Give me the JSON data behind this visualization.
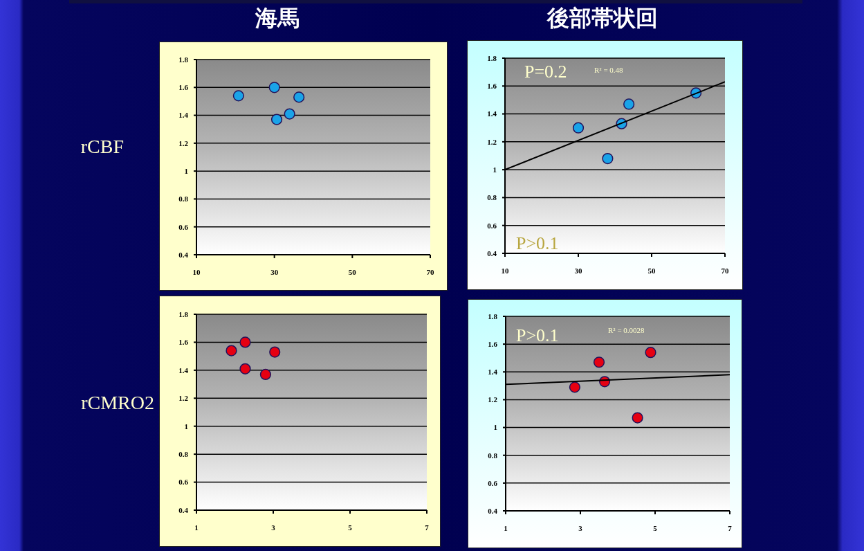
{
  "chart_data": [
    {
      "type": "scatter",
      "title": "海馬",
      "ylabel": "rCBF",
      "xlim": [
        10,
        70
      ],
      "xticks": [
        10,
        30,
        50,
        70
      ],
      "ylim": [
        0.4,
        1.8
      ],
      "yticks": [
        0.4,
        0.6,
        0.8,
        1,
        1.2,
        1.4,
        1.6,
        1.8
      ],
      "grid": "y",
      "marker": "circle",
      "series": [
        {
          "color": "#1aa3e8",
          "x": [
            20.8,
            30,
            36.3,
            33.9,
            30.6
          ],
          "values": [
            1.54,
            1.6,
            1.53,
            1.41,
            1.37
          ]
        }
      ]
    },
    {
      "type": "scatter",
      "title": "後部帯状回",
      "xlim": [
        10,
        70
      ],
      "xticks": [
        10,
        30,
        50,
        70
      ],
      "ylim": [
        0.4,
        1.8
      ],
      "yticks": [
        0.4,
        0.6,
        0.8,
        1,
        1.2,
        1.4,
        1.6,
        1.8
      ],
      "grid": "y",
      "marker": "circle",
      "annotations": [
        "P=0.2",
        "R² = 0.48",
        "P>0.1"
      ],
      "series": [
        {
          "color": "#1aa3e8",
          "x": [
            30,
            38,
            41.8,
            43.8,
            62.1
          ],
          "values": [
            1.3,
            1.08,
            1.33,
            1.47,
            1.55
          ]
        },
        {
          "type": "line",
          "color": "#000000",
          "marker": "none",
          "x": [
            10,
            70
          ],
          "values": [
            1.0,
            1.63
          ]
        }
      ]
    },
    {
      "type": "scatter",
      "ylabel": "rCMRO2",
      "xlim": [
        1,
        7
      ],
      "xticks": [
        1,
        3,
        5,
        7
      ],
      "ylim": [
        0.4,
        1.8
      ],
      "yticks": [
        0.4,
        0.6,
        0.8,
        1,
        1.2,
        1.4,
        1.6,
        1.8
      ],
      "grid": "y",
      "marker": "circle",
      "series": [
        {
          "color": "#e60012",
          "x": [
            1.91,
            2.27,
            3.04,
            2.27,
            2.8
          ],
          "values": [
            1.54,
            1.6,
            1.53,
            1.41,
            1.37
          ]
        }
      ]
    },
    {
      "type": "scatter",
      "xlim": [
        1,
        7
      ],
      "xticks": [
        1,
        3,
        5,
        7
      ],
      "ylim": [
        0.4,
        1.8
      ],
      "yticks": [
        0.4,
        0.6,
        0.8,
        1,
        1.2,
        1.4,
        1.6,
        1.8
      ],
      "grid": "y",
      "marker": "circle",
      "annotations": [
        "P>0.1",
        "R² = 0.0028"
      ],
      "series": [
        {
          "color": "#e60012",
          "x": [
            2.85,
            3.5,
            3.65,
            4.53,
            4.88
          ],
          "values": [
            1.29,
            1.47,
            1.33,
            1.07,
            1.54
          ]
        },
        {
          "type": "line",
          "color": "#000000",
          "marker": "none",
          "x": [
            1,
            7
          ],
          "values": [
            1.31,
            1.38
          ]
        }
      ]
    }
  ]
}
